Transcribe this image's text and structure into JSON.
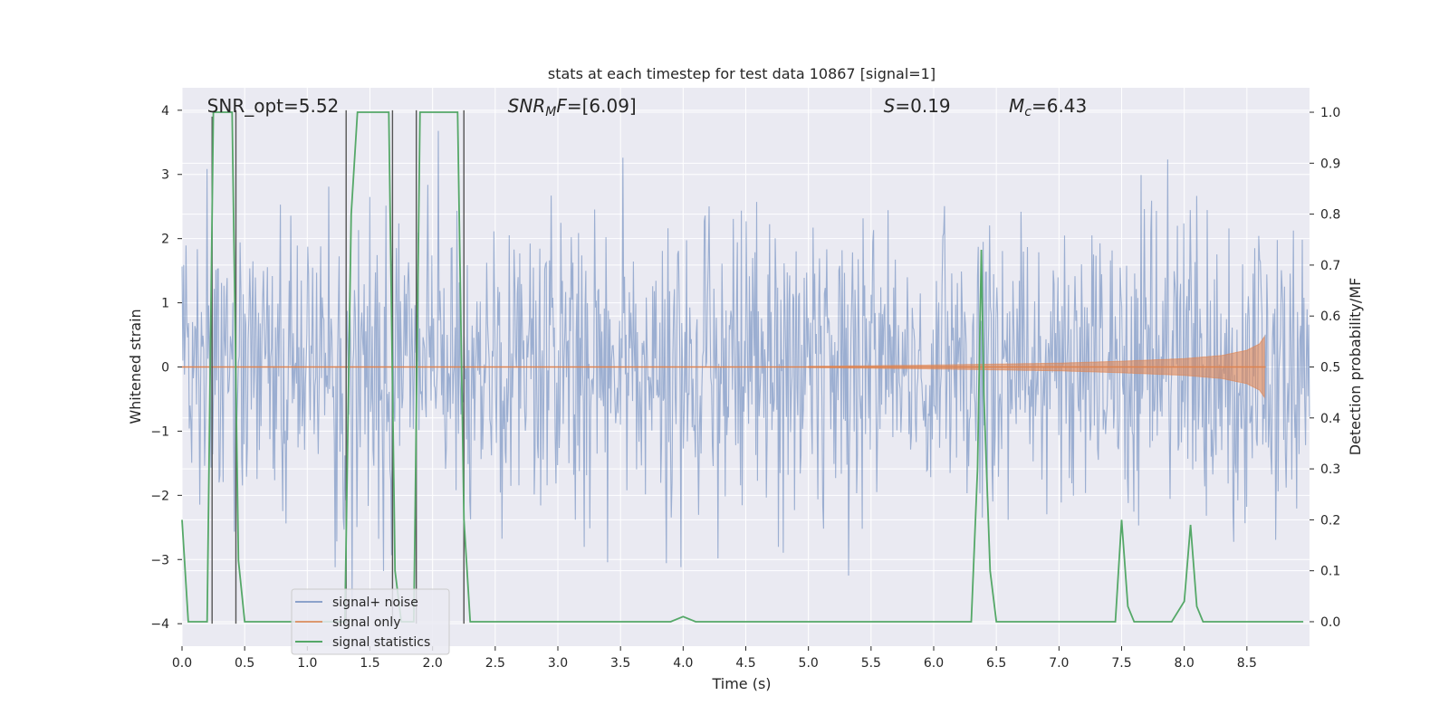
{
  "chart_data": {
    "type": "line",
    "title": "stats at each timestep for test data 10867 [signal=1]",
    "xlabel": "Time (s)",
    "ylabel": "Whitened strain",
    "y2label": "Detection probability/MF",
    "xlim": [
      0.0,
      9.0
    ],
    "ylim": [
      -4.35,
      4.35
    ],
    "y2lim": [
      -0.048,
      1.048
    ],
    "xticks": [
      "0.0",
      "0.5",
      "1.0",
      "1.5",
      "2.0",
      "2.5",
      "3.0",
      "3.5",
      "4.0",
      "4.5",
      "5.0",
      "5.5",
      "6.0",
      "6.5",
      "7.0",
      "7.5",
      "8.0",
      "8.5"
    ],
    "yticks": [
      "−4",
      "−3",
      "−2",
      "−1",
      "0",
      "1",
      "2",
      "3",
      "4"
    ],
    "y2ticks": [
      "0.0",
      "0.1",
      "0.2",
      "0.3",
      "0.4",
      "0.5",
      "0.6",
      "0.7",
      "0.8",
      "0.9",
      "1.0"
    ],
    "grid": true,
    "legend_placement": "lower-left",
    "colors": {
      "noise": "#4c72b0",
      "signal": "#dd8452",
      "stats": "#55a868",
      "background": "#eaeaf2",
      "grid": "#ffffff",
      "vlines": "#555555"
    },
    "annotations": [
      {
        "text_html": "SNR_opt=5.52",
        "x": 0.2
      },
      {
        "text_html": "<tspan font-style=\"italic\">SNR</tspan><tspan font-style=\"italic\" font-size=\"14\" dy=\"4\">M</tspan><tspan font-style=\"italic\" dy=\"-4\">F</tspan>=[6.09]",
        "x": 2.6
      },
      {
        "text_html": "<tspan font-style=\"italic\">S</tspan>=0.19",
        "x": 5.6
      },
      {
        "text_html": "<tspan font-style=\"italic\">M</tspan><tspan font-style=\"italic\" font-size=\"14\" dy=\"4\">c</tspan><tspan dy=\"-4\">=6.43</tspan>",
        "x": 6.6
      }
    ],
    "vertical_lines": [
      {
        "x": 0.24,
        "y0": 3.9,
        "y1": -4.0
      },
      {
        "x": 0.43,
        "y0": 4.0,
        "y1": -4.0
      },
      {
        "x": 1.31,
        "y0": 4.0,
        "y1": -4.0
      },
      {
        "x": 1.68,
        "y0": 4.0,
        "y1": -4.0
      },
      {
        "x": 1.87,
        "y0": 4.0,
        "y1": -4.0
      },
      {
        "x": 2.25,
        "y0": 4.0,
        "y1": -4.0
      }
    ],
    "signal_only": {
      "name": "signal only",
      "t_merge": 8.65,
      "envelope": [
        [
          5.0,
          0.01
        ],
        [
          6.0,
          0.03
        ],
        [
          7.0,
          0.06
        ],
        [
          7.5,
          0.09
        ],
        [
          8.0,
          0.13
        ],
        [
          8.3,
          0.18
        ],
        [
          8.5,
          0.26
        ],
        [
          8.6,
          0.36
        ],
        [
          8.65,
          0.5
        ]
      ]
    },
    "signal_noise": {
      "name": "signal+ noise",
      "samples": 1400,
      "std": 1.0
    },
    "series": [
      {
        "name": "signal statistics",
        "axis": "right",
        "x": [
          0.0,
          0.05,
          0.1,
          0.15,
          0.2,
          0.25,
          0.3,
          0.35,
          0.4,
          0.45,
          0.5,
          0.55,
          0.6,
          0.8,
          1.0,
          1.2,
          1.3,
          1.35,
          1.4,
          1.45,
          1.55,
          1.65,
          1.7,
          1.75,
          1.8,
          1.85,
          1.9,
          1.95,
          2.0,
          2.1,
          2.2,
          2.25,
          2.3,
          2.5,
          3.0,
          3.5,
          3.9,
          4.0,
          4.1,
          4.5,
          5.0,
          5.5,
          6.0,
          6.3,
          6.35,
          6.38,
          6.4,
          6.45,
          6.5,
          7.0,
          7.4,
          7.45,
          7.5,
          7.55,
          7.6,
          7.7,
          7.9,
          8.0,
          8.05,
          8.1,
          8.15,
          8.5,
          8.95
        ],
        "y": [
          0.2,
          0.0,
          0.0,
          0.0,
          0.0,
          1.0,
          1.0,
          1.0,
          1.0,
          0.12,
          0.0,
          0.0,
          0.0,
          0.0,
          0.0,
          0.0,
          0.0,
          0.8,
          1.0,
          1.0,
          1.0,
          1.0,
          0.1,
          0.0,
          0.0,
          0.0,
          1.0,
          1.0,
          1.0,
          1.0,
          1.0,
          0.2,
          0.0,
          0.0,
          0.0,
          0.0,
          0.0,
          0.01,
          0.0,
          0.0,
          0.0,
          0.0,
          0.0,
          0.0,
          0.3,
          0.73,
          0.45,
          0.1,
          0.0,
          0.0,
          0.0,
          0.0,
          0.2,
          0.03,
          0.0,
          0.0,
          0.0,
          0.04,
          0.19,
          0.03,
          0.0,
          0.0,
          0.0
        ]
      }
    ]
  }
}
